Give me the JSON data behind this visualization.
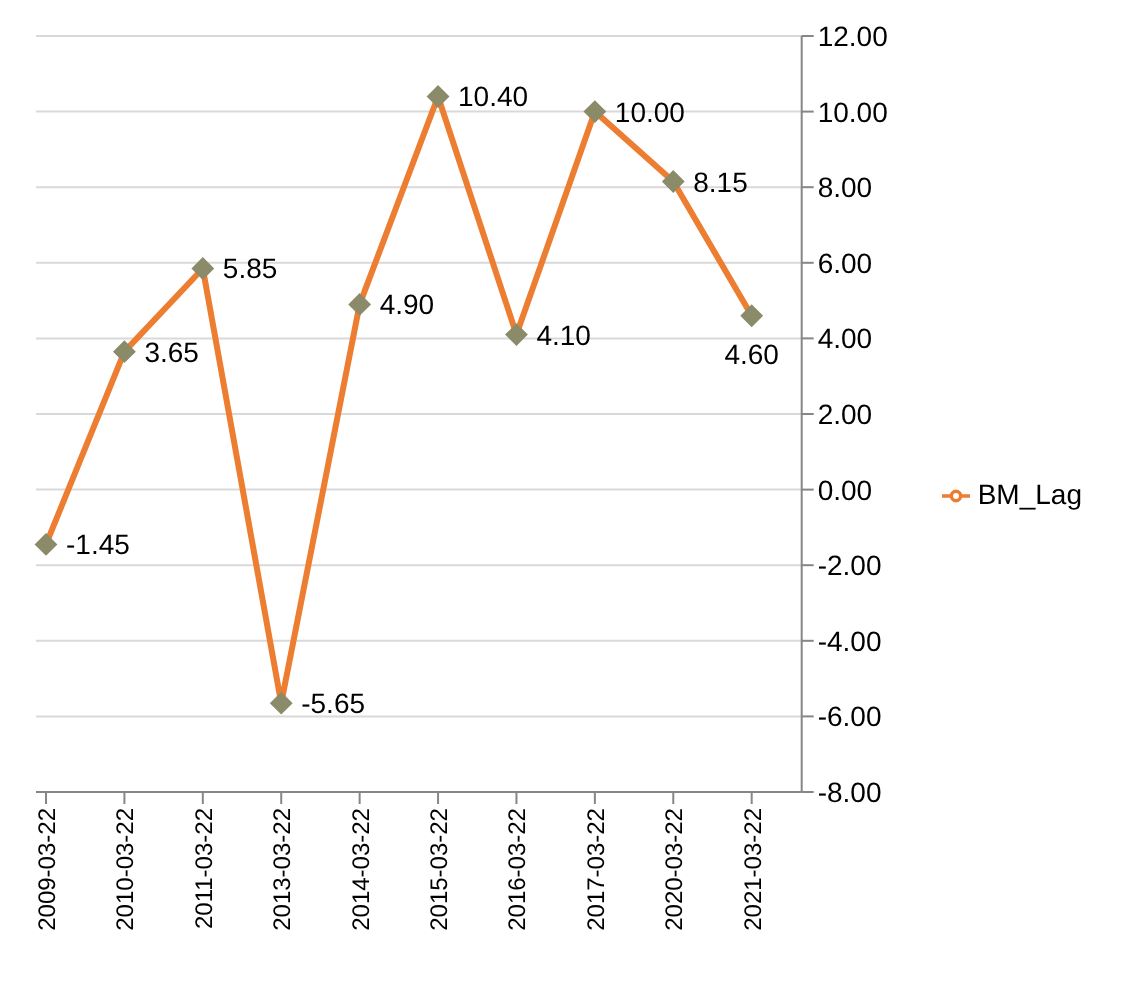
{
  "chart_data": {
    "type": "line",
    "categories": [
      "2009-03-22",
      "2010-03-22",
      "2011-03-22",
      "2013-03-22",
      "2014-03-22",
      "2015-03-22",
      "2016-03-22",
      "2017-03-22",
      "2020-03-22",
      "2021-03-22"
    ],
    "series": [
      {
        "name": "BM_Lag",
        "color": "#ed7d31",
        "values": [
          -1.45,
          3.65,
          5.85,
          -5.65,
          4.9,
          10.4,
          4.1,
          10.0,
          8.15,
          4.6
        ],
        "value_labels": [
          "-1.45",
          "3.65",
          "5.85",
          "-5.65",
          "4.90",
          "10.40",
          "4.10",
          "10.00",
          "8.15",
          "4.60"
        ]
      }
    ],
    "ylim": [
      -8,
      12
    ],
    "yticks": [
      {
        "value": -8,
        "label": "-8.00"
      },
      {
        "value": -6,
        "label": "-6.00"
      },
      {
        "value": -4,
        "label": "-4.00"
      },
      {
        "value": -2,
        "label": "-2.00"
      },
      {
        "value": 0,
        "label": "0.00"
      },
      {
        "value": 2,
        "label": "2.00"
      },
      {
        "value": 4,
        "label": "4.00"
      },
      {
        "value": 6,
        "label": "6.00"
      },
      {
        "value": 8,
        "label": "8.00"
      },
      {
        "value": 10,
        "label": "10.00"
      },
      {
        "value": 12,
        "label": "12.00"
      }
    ],
    "grid": "y",
    "legend": "right",
    "marker": "diamond",
    "line_style": "solid"
  }
}
